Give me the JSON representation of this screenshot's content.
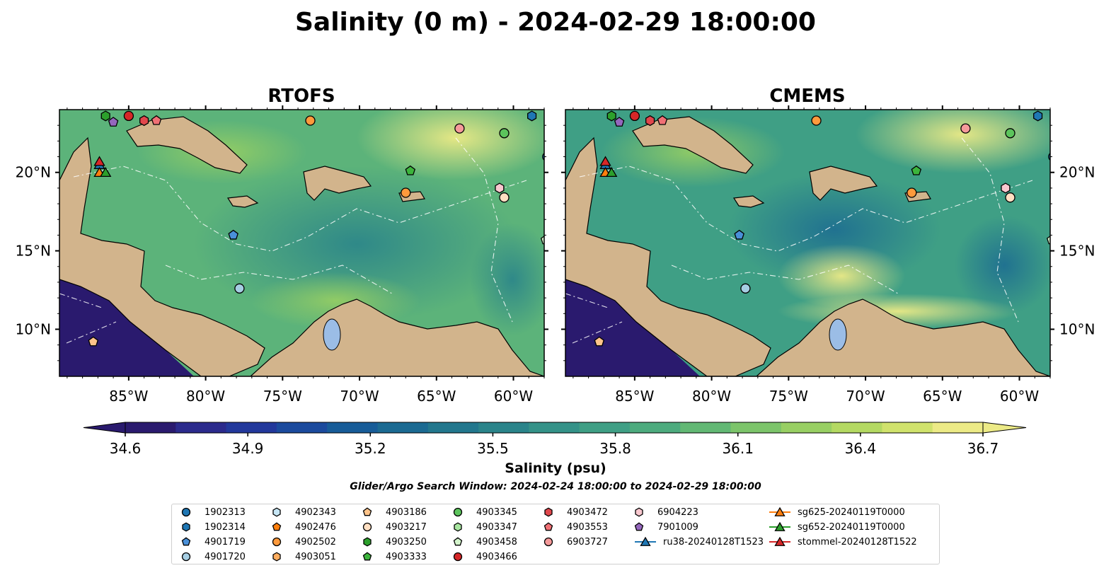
{
  "title": "Salinity (0 m) - 2024-02-29 18:00:00",
  "panels": [
    {
      "title": "RTOFS"
    },
    {
      "title": "CMEMS"
    }
  ],
  "axes": {
    "lon_ticks": [
      "85°W",
      "80°W",
      "75°W",
      "70°W",
      "65°W",
      "60°W"
    ],
    "lat_ticks": [
      "20°N",
      "15°N",
      "10°N"
    ]
  },
  "colorbar": {
    "label": "Salinity (psu)",
    "ticks": [
      "34.6",
      "34.9",
      "35.2",
      "35.5",
      "35.8",
      "36.1",
      "36.4",
      "36.7"
    ],
    "min": 34.6,
    "max": 36.7,
    "colors": [
      "#2a1a6e",
      "#2b2a8c",
      "#22389b",
      "#1b4a9d",
      "#175c98",
      "#1b6a92",
      "#22778d",
      "#2a848a",
      "#349288",
      "#3f9f85",
      "#4dab7e",
      "#62b874",
      "#7cc46a",
      "#98cf63",
      "#b4d962",
      "#d0e26c",
      "#ecea86"
    ]
  },
  "search_window": "Glider/Argo Search Window: 2024-02-24 18:00:00 to 2024-02-29 18:00:00",
  "legend": [
    {
      "label": "1902313",
      "marker": "circle",
      "color": "#1f77b4"
    },
    {
      "label": "1902314",
      "marker": "hexagon",
      "color": "#1f77b4"
    },
    {
      "label": "4901719",
      "marker": "pentagon",
      "color": "#4a90d9"
    },
    {
      "label": "4901720",
      "marker": "circle",
      "color": "#a6cee3"
    },
    {
      "label": "4902343",
      "marker": "hexagon",
      "color": "#c6e6f5"
    },
    {
      "label": "4902476",
      "marker": "pentagon",
      "color": "#ff7f0e"
    },
    {
      "label": "4902502",
      "marker": "circle",
      "color": "#ff9a3c"
    },
    {
      "label": "4903051",
      "marker": "hexagon",
      "color": "#ffad5f"
    },
    {
      "label": "4903186",
      "marker": "pentagon",
      "color": "#ffc48a"
    },
    {
      "label": "4903217",
      "marker": "circle",
      "color": "#ffdfc2"
    },
    {
      "label": "4903250",
      "marker": "hexagon",
      "color": "#2ca02c"
    },
    {
      "label": "4903333",
      "marker": "pentagon",
      "color": "#3cb43c"
    },
    {
      "label": "4903345",
      "marker": "circle",
      "color": "#5cc45c"
    },
    {
      "label": "4903347",
      "marker": "hexagon",
      "color": "#a8e6a0"
    },
    {
      "label": "4903458",
      "marker": "pentagon",
      "color": "#d4f5cc"
    },
    {
      "label": "4903466",
      "marker": "circle",
      "color": "#d62728"
    },
    {
      "label": "4903472",
      "marker": "hexagon",
      "color": "#e0474c"
    },
    {
      "label": "4903553",
      "marker": "pentagon",
      "color": "#f07075"
    },
    {
      "label": "6903727",
      "marker": "circle",
      "color": "#f59a9a"
    },
    {
      "label": "6904223",
      "marker": "hexagon",
      "color": "#f9c8cf"
    },
    {
      "label": "7901009",
      "marker": "pentagon",
      "color": "#9467bd"
    },
    {
      "label": "ru38-20240128T1523",
      "marker": "triangle-line",
      "color": "#1f77b4"
    },
    {
      "label": "sg625-20240119T0000",
      "marker": "triangle-line",
      "color": "#ff7f0e"
    },
    {
      "label": "sg652-20240119T0000",
      "marker": "triangle-line",
      "color": "#2ca02c"
    },
    {
      "label": "stommel-20240128T1522",
      "marker": "triangle-line",
      "color": "#d62728"
    }
  ],
  "map_colors": {
    "land": "#d2b48c",
    "lake": "#9bbde6",
    "river": "#9fb6cc",
    "deep_ocean": "#2a1a6e"
  },
  "map_points": [
    {
      "lon": -86.5,
      "lat": 23.6,
      "marker": "hexagon",
      "color": "#2ca02c"
    },
    {
      "lon": -85.0,
      "lat": 23.6,
      "marker": "circle",
      "color": "#d62728"
    },
    {
      "lon": -84.0,
      "lat": 23.3,
      "marker": "hexagon",
      "color": "#e0474c"
    },
    {
      "lon": -83.2,
      "lat": 23.3,
      "marker": "pentagon",
      "color": "#f07075"
    },
    {
      "lon": -86.0,
      "lat": 23.2,
      "marker": "pentagon",
      "color": "#9467bd"
    },
    {
      "lon": -73.2,
      "lat": 23.3,
      "marker": "circle",
      "color": "#ff9a3c"
    },
    {
      "lon": -63.5,
      "lat": 22.8,
      "marker": "circle",
      "color": "#f59a9a"
    },
    {
      "lon": -60.6,
      "lat": 22.5,
      "marker": "circle",
      "color": "#5cc45c"
    },
    {
      "lon": -58.8,
      "lat": 23.6,
      "marker": "hexagon",
      "color": "#1f77b4"
    },
    {
      "lon": -57.8,
      "lat": 21.0,
      "marker": "circle",
      "color": "#1f77b4"
    },
    {
      "lon": -66.7,
      "lat": 20.1,
      "marker": "pentagon",
      "color": "#3cb43c"
    },
    {
      "lon": -67.0,
      "lat": 18.7,
      "marker": "circle",
      "color": "#ff9a3c"
    },
    {
      "lon": -60.9,
      "lat": 19.0,
      "marker": "hexagon",
      "color": "#f9c8cf"
    },
    {
      "lon": -60.6,
      "lat": 18.4,
      "marker": "circle",
      "color": "#ffdfc2"
    },
    {
      "lon": -78.2,
      "lat": 16.0,
      "marker": "pentagon",
      "color": "#4a90d9"
    },
    {
      "lon": -57.9,
      "lat": 15.7,
      "marker": "pentagon",
      "color": "#d4f5cc"
    },
    {
      "lon": -77.8,
      "lat": 12.6,
      "marker": "circle",
      "color": "#a6cee3"
    },
    {
      "lon": -87.3,
      "lat": 9.2,
      "marker": "pentagon",
      "color": "#ffc48a"
    },
    {
      "lon": -86.9,
      "lat": 20.5,
      "marker": "triangle",
      "color": "#1f77b4"
    },
    {
      "lon": -86.9,
      "lat": 20.0,
      "marker": "triangle",
      "color": "#ff7f0e"
    },
    {
      "lon": -86.5,
      "lat": 20.0,
      "marker": "triangle",
      "color": "#2ca02c"
    },
    {
      "lon": -86.9,
      "lat": 20.7,
      "marker": "triangle",
      "color": "#d62728"
    }
  ]
}
